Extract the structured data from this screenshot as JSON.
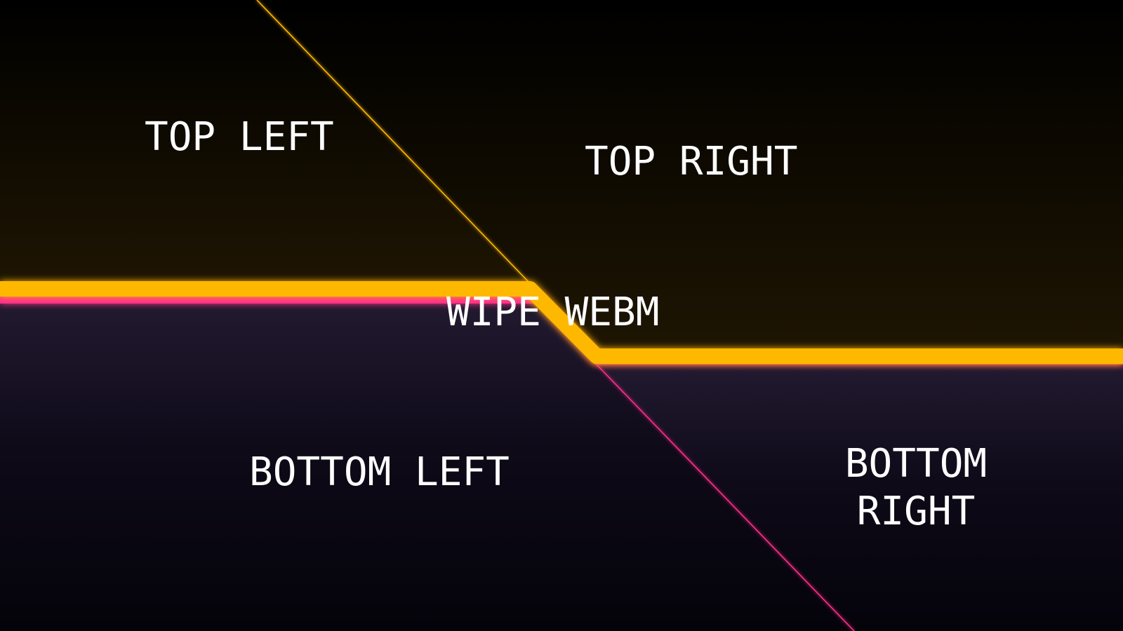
{
  "labels": {
    "top_left": "TOP LEFT",
    "top_right": "TOP RIGHT",
    "bottom_left": "BOTTOM LEFT",
    "bottom_right": "BOTTOM RIGHT",
    "center": "WIPE WEBM"
  },
  "colors": {
    "background": "#000000",
    "top_tint": "#1e1502",
    "bottom_tint": "#221a30",
    "bottom_dark": "#04030a",
    "amber": "#ffb800",
    "magenta": "#ff2d8a"
  }
}
